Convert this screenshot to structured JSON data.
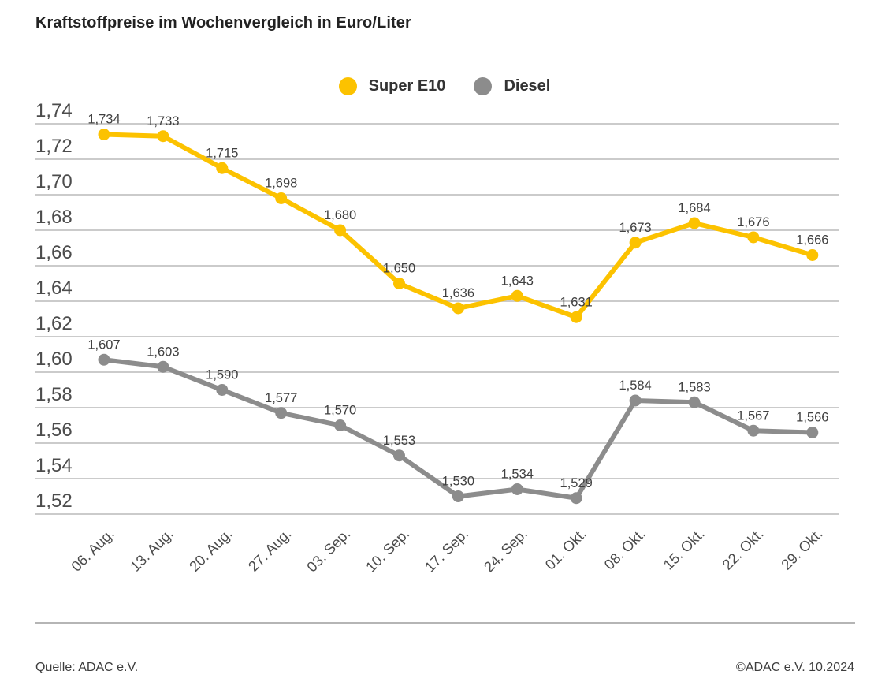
{
  "title": "Kraftstoffpreise im Wochenvergleich in Euro/Liter",
  "footer": {
    "source": "Quelle: ADAC e.V.",
    "copyright": "©ADAC e.V. 10.2024"
  },
  "colors": {
    "super_e10": "#FCC200",
    "diesel": "#8C8C8C",
    "gridline": "#CBCBCB",
    "axis_text": "#4C4C4C",
    "label_text": "#404040"
  },
  "chart_data": {
    "type": "line",
    "title": "Kraftstoffpreise im Wochenvergleich in Euro/Liter",
    "unit": "Euro/Liter",
    "grid": "horizontal",
    "legend_position": "top-center",
    "categories": [
      "06. Aug.",
      "13. Aug.",
      "20. Aug.",
      "27. Aug.",
      "03. Sep.",
      "10. Sep.",
      "17. Sep.",
      "24. Sep.",
      "01. Okt.",
      "08. Okt.",
      "15. Okt.",
      "22. Okt.",
      "29. Okt."
    ],
    "series": [
      {
        "name": "Super E10",
        "color": "#FCC200",
        "values": [
          1.734,
          1.733,
          1.715,
          1.698,
          1.68,
          1.65,
          1.636,
          1.643,
          1.631,
          1.673,
          1.684,
          1.676,
          1.666
        ],
        "labels": [
          "1,734",
          "1,733",
          "1,715",
          "1,698",
          "1,680",
          "1,650",
          "1,636",
          "1,643",
          "1,631",
          "1,673",
          "1,684",
          "1,676",
          "1,666"
        ]
      },
      {
        "name": "Diesel",
        "color": "#8C8C8C",
        "values": [
          1.607,
          1.603,
          1.59,
          1.577,
          1.57,
          1.553,
          1.53,
          1.534,
          1.529,
          1.584,
          1.583,
          1.567,
          1.566
        ],
        "labels": [
          "1,607",
          "1,603",
          "1,590",
          "1,577",
          "1,570",
          "1,553",
          "1,530",
          "1,534",
          "1,529",
          "1,584",
          "1,583",
          "1,567",
          "1,566"
        ]
      }
    ],
    "y_ticks": [
      {
        "value": 1.74,
        "label": "1,74"
      },
      {
        "value": 1.72,
        "label": "1,72"
      },
      {
        "value": 1.7,
        "label": "1,70"
      },
      {
        "value": 1.68,
        "label": "1,68"
      },
      {
        "value": 1.66,
        "label": "1,66"
      },
      {
        "value": 1.64,
        "label": "1,64"
      },
      {
        "value": 1.62,
        "label": "1,62"
      },
      {
        "value": 1.6,
        "label": "1,60"
      },
      {
        "value": 1.58,
        "label": "1,58"
      },
      {
        "value": 1.56,
        "label": "1,56"
      },
      {
        "value": 1.54,
        "label": "1,54"
      },
      {
        "value": 1.52,
        "label": "1,52"
      }
    ],
    "ylim": [
      1.52,
      1.74
    ]
  }
}
